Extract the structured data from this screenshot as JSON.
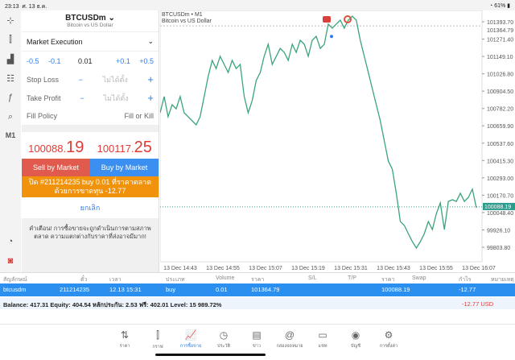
{
  "status": {
    "time": "23:13",
    "date": "ศ. 13 ธ.ค.",
    "battery": "61%"
  },
  "left_toolbar": [
    {
      "icon": "crosshair-icon",
      "glyph": "⊹"
    },
    {
      "icon": "candles-icon",
      "glyph": "⫿"
    },
    {
      "icon": "indicators-icon",
      "glyph": "▟"
    },
    {
      "icon": "sliders-icon",
      "glyph": "☷"
    },
    {
      "icon": "function-icon",
      "glyph": "ƒ"
    },
    {
      "icon": "objects-icon",
      "glyph": "⌕"
    },
    {
      "icon": "timeframe",
      "glyph": "M1"
    }
  ],
  "left_toolbar_bottom": [
    {
      "icon": "trade-chart-icon",
      "glyph": "◔"
    },
    {
      "icon": "one-click-icon",
      "glyph": "◙"
    }
  ],
  "order": {
    "symbol": "BTCUSDm",
    "symbol_desc": "Bitcoin vs US Dollar",
    "execution": "Market Execution",
    "steps": [
      "-0.5",
      "-0.1",
      "+0.1",
      "+0.5"
    ],
    "volume": "0.01",
    "stop_loss_label": "Stop Loss",
    "take_profit_label": "Take Profit",
    "not_set": "ไม่ได้ตั้ง",
    "fill_policy_label": "Fill Policy",
    "fill_policy_value": "Fill or Kill",
    "bid_main": "100088.",
    "bid_big": "19",
    "ask_main": "100117.",
    "ask_big": "25",
    "sell_label": "Sell by Market",
    "buy_label": "Buy by Market",
    "close_notice": "ปิด #211214235 buy 0.01 ที่ราคาตลาดด้วยการขาดทุน -12.77",
    "cancel": "ยกเลิก",
    "warning": "คำเตือน! การซื้อขายจะถูกดำเนินการตามสภาพตลาด ความแตกต่างกับราคาที่ส่งอาจมีมาก!",
    "sell_color": "#e05a4e",
    "buy_color": "#3b8ff0"
  },
  "chart_data": {
    "type": "line",
    "title": "BTCUSDm • M1",
    "subtitle": "Bitcoin vs US Dollar",
    "line_color": "#3aa57a",
    "ylim": [
      99750,
      101430
    ],
    "y_ticks": [
      "101393.70",
      "101271.40",
      "101149.10",
      "101026.80",
      "100904.50",
      "100782.20",
      "100659.90",
      "100537.60",
      "100415.30",
      "100293.00",
      "100170.70",
      "100048.40",
      "99926.10",
      "99803.80"
    ],
    "x_ticks": [
      "13 Dec 14:43",
      "13 Dec 14:55",
      "13 Dec 15:07",
      "13 Dec 15:19",
      "13 Dec 15:31",
      "13 Dec 15:43",
      "13 Dec 15:55",
      "13 Dec 16:07"
    ],
    "open_price": "101364.79",
    "last_price": "100088.19",
    "values": [
      100752,
      100866,
      100724,
      100809,
      100780,
      100866,
      100752,
      100724,
      100695,
      100667,
      100724,
      100866,
      101008,
      101121,
      101064,
      101150,
      101093,
      101036,
      101121,
      101064,
      101093,
      100866,
      100752,
      100837,
      100979,
      101036,
      101150,
      101235,
      101093,
      101150,
      101206,
      101178,
      101121,
      101235,
      101178,
      101263,
      101235,
      101150,
      101263,
      101291,
      101206,
      101235,
      101377,
      101348,
      101377,
      101405,
      101348,
      101405,
      101433,
      101405,
      101263,
      101150,
      101036,
      100922,
      100809,
      100695,
      100553,
      100411,
      100355,
      100184,
      99985,
      99957,
      99900,
      99844,
      99798,
      99844,
      99900,
      99985,
      99929,
      100042,
      100116,
      99929,
      100127,
      100139,
      100127,
      100184,
      100127,
      100156,
      100213,
      100082
    ]
  },
  "table": {
    "headers": [
      "สัญลักษณ์",
      "ตั๋ว",
      "เวลา",
      "ประเภท",
      "Volume",
      "ราคา",
      "S/L",
      "T/P",
      "ราคา",
      "Swap",
      "กำไร",
      "หมายเหตุ"
    ],
    "rows": [
      [
        "btcusdm",
        "211214235",
        "12.13 15:31",
        "buy",
        "0.01",
        "101364.79",
        "",
        "",
        "100088.19",
        "",
        "-12.77",
        ""
      ]
    ],
    "balance": "Balance: 417.31 Equity: 404.54 หลักประกัน: 2.53 ฟรี: 402.01 Level: 15 989.72%",
    "total": "-12.77  USD"
  },
  "nav": [
    {
      "label": "ราคา",
      "icon": "quotes-icon",
      "glyph": "⇅"
    },
    {
      "label": "กราฟ",
      "icon": "chart-icon",
      "glyph": "⫿"
    },
    {
      "label": "การซื้อขาย",
      "icon": "trade-icon",
      "glyph": "📈",
      "active": true
    },
    {
      "label": "ประวัติ",
      "icon": "history-icon",
      "glyph": "◷"
    },
    {
      "label": "ข่าว",
      "icon": "news-icon",
      "glyph": "▤"
    },
    {
      "label": "กล่องจดหมาย",
      "icon": "mail-icon",
      "glyph": "@"
    },
    {
      "label": "แชท",
      "icon": "chat-icon",
      "glyph": "▭"
    },
    {
      "label": "บัญชี",
      "icon": "account-icon",
      "glyph": "◉"
    },
    {
      "label": "การตั้งค่า",
      "icon": "settings-icon",
      "glyph": "⚙"
    }
  ]
}
